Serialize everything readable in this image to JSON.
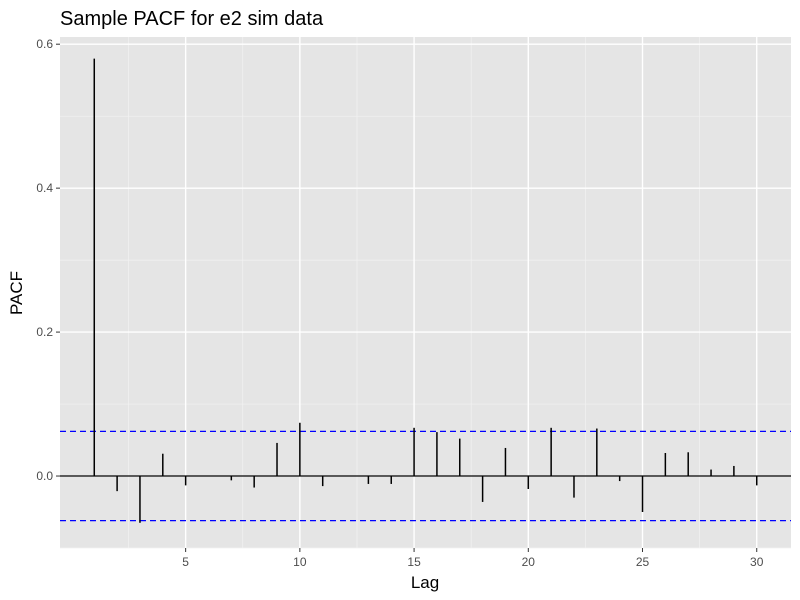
{
  "colors": {
    "panel_background": "#e5e5e5",
    "grid_major": "#ffffff",
    "grid_minor": "#f2f2f2",
    "bars": "#000000",
    "zero_line": "#000000",
    "confidence_bounds": "#0000ff",
    "tick_text": "#4d4d4d"
  },
  "chart_data": {
    "type": "bar",
    "subtype": "pacf-lollipop",
    "title": "Sample PACF for e2 sim data",
    "xlabel": "Lag",
    "ylabel": "PACF",
    "xlim": [
      -0.5,
      31.5
    ],
    "ylim": [
      -0.1,
      0.61
    ],
    "x_ticks": [
      5,
      10,
      15,
      20,
      25,
      30
    ],
    "x_tick_labels": [
      "5",
      "10",
      "15",
      "20",
      "25",
      "30"
    ],
    "y_ticks": [
      0.0,
      0.2,
      0.4,
      0.6
    ],
    "y_tick_labels": [
      "0.0",
      "0.2",
      "0.4",
      "0.6"
    ],
    "grid": true,
    "legend": "none",
    "confidence_bounds": [
      0.062,
      -0.062
    ],
    "lags": [
      1,
      2,
      3,
      4,
      5,
      6,
      7,
      8,
      9,
      10,
      11,
      12,
      13,
      14,
      15,
      16,
      17,
      18,
      19,
      20,
      21,
      22,
      23,
      24,
      25,
      26,
      27,
      28,
      29,
      30
    ],
    "values": [
      0.58,
      -0.021,
      -0.065,
      0.031,
      -0.013,
      0.0,
      -0.006,
      -0.016,
      0.046,
      0.074,
      -0.014,
      0.0,
      -0.011,
      -0.011,
      0.067,
      0.061,
      0.052,
      -0.036,
      0.039,
      -0.018,
      0.067,
      -0.03,
      0.066,
      -0.007,
      -0.05,
      0.032,
      0.033,
      0.009,
      0.014,
      -0.013
    ]
  }
}
